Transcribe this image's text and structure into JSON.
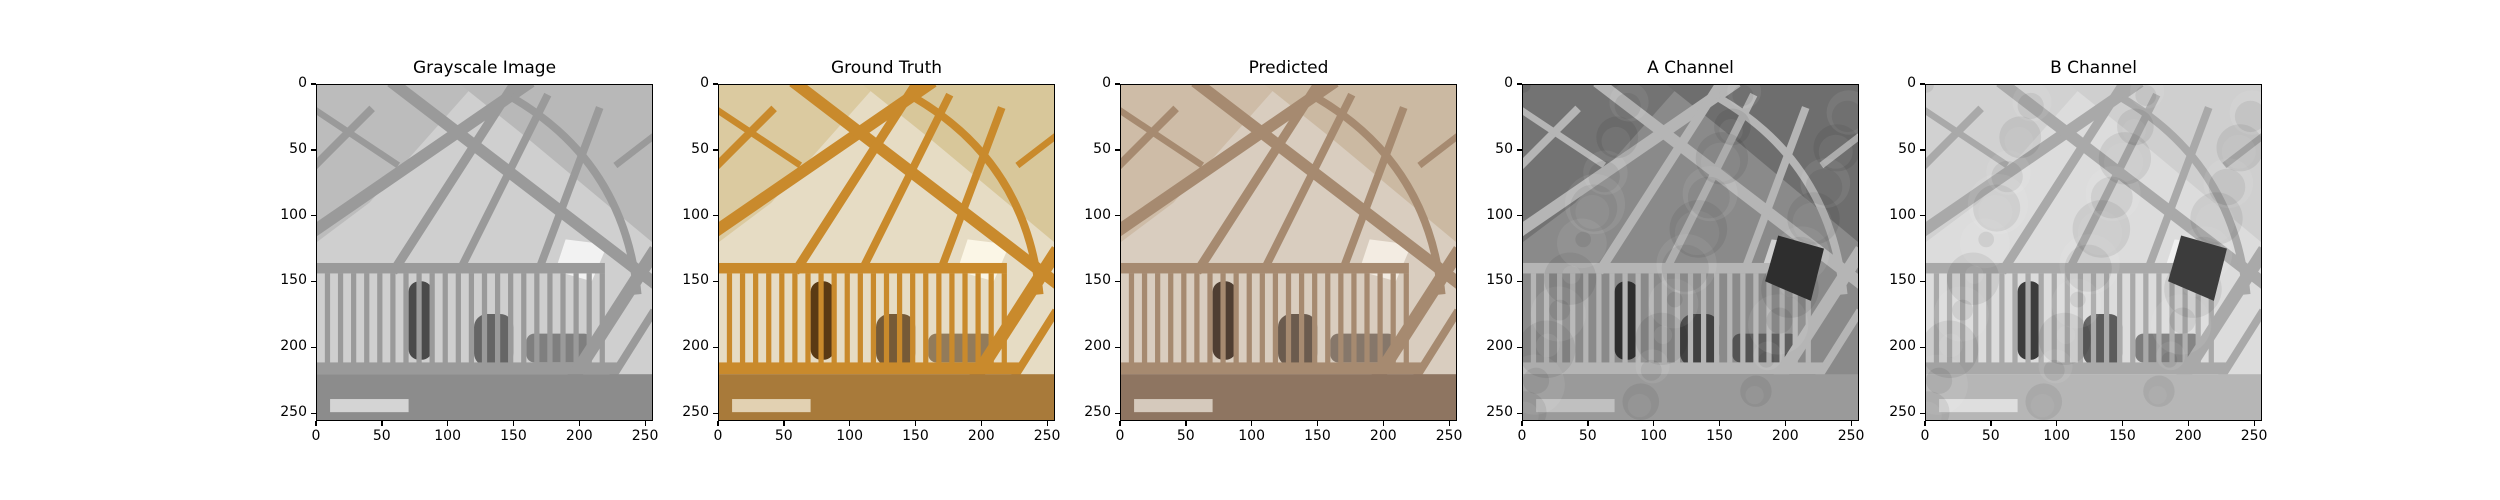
{
  "panels": [
    {
      "title": "Grayscale Image",
      "variant": "gray"
    },
    {
      "title": "Ground Truth",
      "variant": "truth"
    },
    {
      "title": "Predicted",
      "variant": "pred"
    },
    {
      "title": "A Channel",
      "variant": "achan"
    },
    {
      "title": "B Channel",
      "variant": "bchan"
    }
  ],
  "axes": {
    "x_ticks": [
      "0",
      "50",
      "100",
      "150",
      "200",
      "250"
    ],
    "y_ticks": [
      "0",
      "50",
      "100",
      "150",
      "200",
      "250"
    ],
    "xlim": [
      0,
      256
    ],
    "ylim": [
      256,
      0
    ]
  },
  "palettes": {
    "gray": {
      "wall": "#cfcfcf",
      "ceil": "#b8b8b8",
      "wood": "#9a9a9a",
      "dark": "#4a4a4a",
      "light": "#f2f2f2",
      "floor": "#8c8c8c"
    },
    "truth": {
      "wall": "#e6dcc4",
      "ceil": "#d8c79a",
      "wood": "#c98a2c",
      "dark": "#5a3a14",
      "light": "#fbf6e6",
      "floor": "#a87a3a"
    },
    "pred": {
      "wall": "#d9cdbf",
      "ceil": "#cbb9a2",
      "wood": "#a68a70",
      "dark": "#4f3e32",
      "light": "#f3ece2",
      "floor": "#8e7561"
    },
    "achan": {
      "wall": "#8a8a8a",
      "ceil": "#6e6e6e",
      "wood": "#b5b5b5",
      "dark": "#2e2e2e",
      "light": "#d0d0d0",
      "floor": "#9a9a9a"
    },
    "bchan": {
      "wall": "#dcdcdc",
      "ceil": "#cfcfcf",
      "wood": "#a9a9a9",
      "dark": "#3c3c3c",
      "light": "#f0f0f0",
      "floor": "#b6b6b6"
    }
  }
}
